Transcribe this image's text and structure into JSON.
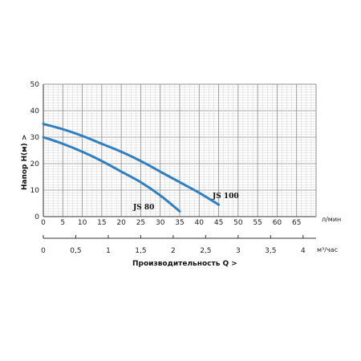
{
  "chart_data": {
    "type": "line",
    "ylabel": "Напор  H(м)  >",
    "xlabel_bottom": "Производительность Q  >",
    "x_unit_top": "л/мин",
    "x_unit_bottom": "м³/час",
    "xlim": [
      0,
      70
    ],
    "ylim": [
      0,
      50
    ],
    "x_ticks": [
      "0",
      "5",
      "10",
      "15",
      "20",
      "25",
      "30",
      "35",
      "40",
      "45",
      "50",
      "55",
      "60",
      "65"
    ],
    "y_ticks": [
      "0",
      "10",
      "20",
      "30",
      "40",
      "50"
    ],
    "x2_ticks": [
      "0",
      "0,5",
      "1",
      "1,5",
      "2",
      "2,5",
      "3",
      "3,5",
      "4"
    ],
    "grid": true,
    "series": [
      {
        "name": "JS 100",
        "color": "#2f7fc1",
        "x": [
          0,
          5,
          10,
          15,
          20,
          25,
          30,
          35,
          40,
          45
        ],
        "y": [
          35,
          33,
          30.5,
          27.5,
          24.5,
          21,
          17,
          13,
          9,
          4.5
        ]
      },
      {
        "name": "JS 80",
        "color": "#2f7fc1",
        "x": [
          0,
          5,
          10,
          15,
          20,
          25,
          30,
          35
        ],
        "y": [
          30,
          27.5,
          24.5,
          21,
          17,
          13,
          8,
          2
        ]
      }
    ]
  }
}
